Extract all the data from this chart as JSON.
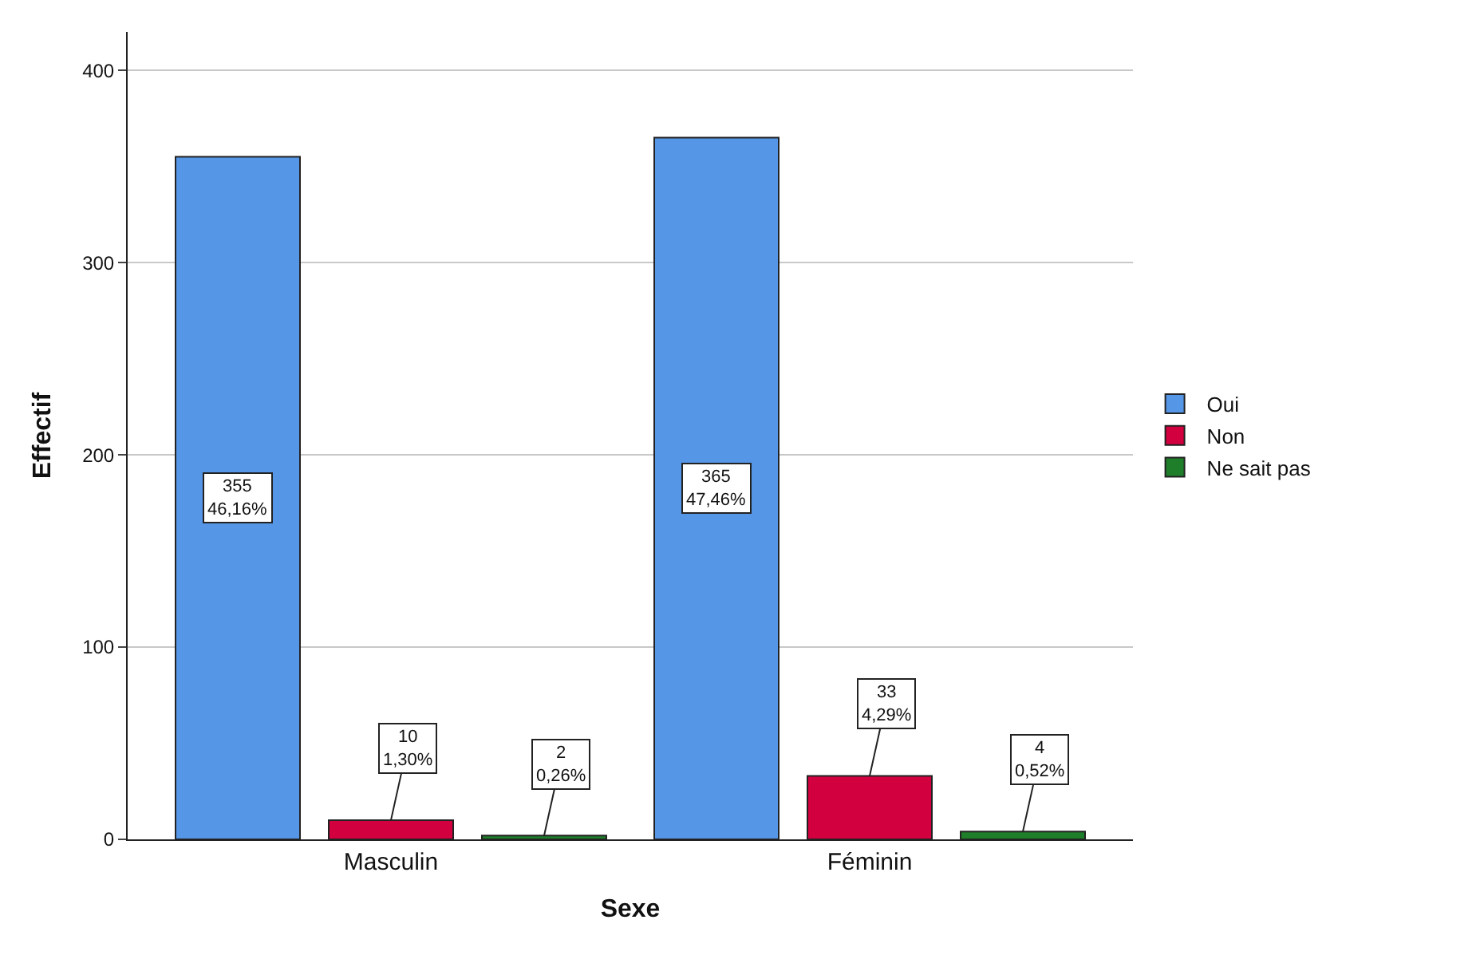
{
  "chart_data": {
    "type": "bar",
    "xlabel": "Sexe",
    "ylabel": "Effectif",
    "categories": [
      "Masculin",
      "Féminin"
    ],
    "series": [
      {
        "name": "Oui",
        "color": "#5596e6",
        "values": [
          355,
          365
        ],
        "value_labels": [
          "355\n46,16%",
          "365\n47,46%"
        ]
      },
      {
        "name": "Non",
        "color": "#d2003f",
        "values": [
          10,
          33
        ],
        "value_labels": [
          "10\n1,30%",
          "33\n4,29%"
        ]
      },
      {
        "name": "Ne sait pas",
        "color": "#1f7e2a",
        "values": [
          2,
          4
        ],
        "value_labels": [
          "2\n0,26%",
          "4\n0,52%"
        ]
      }
    ],
    "ylim": [
      0,
      420
    ],
    "yticks": [
      0,
      100,
      200,
      300,
      400
    ],
    "grid": "y",
    "legend": "right"
  }
}
